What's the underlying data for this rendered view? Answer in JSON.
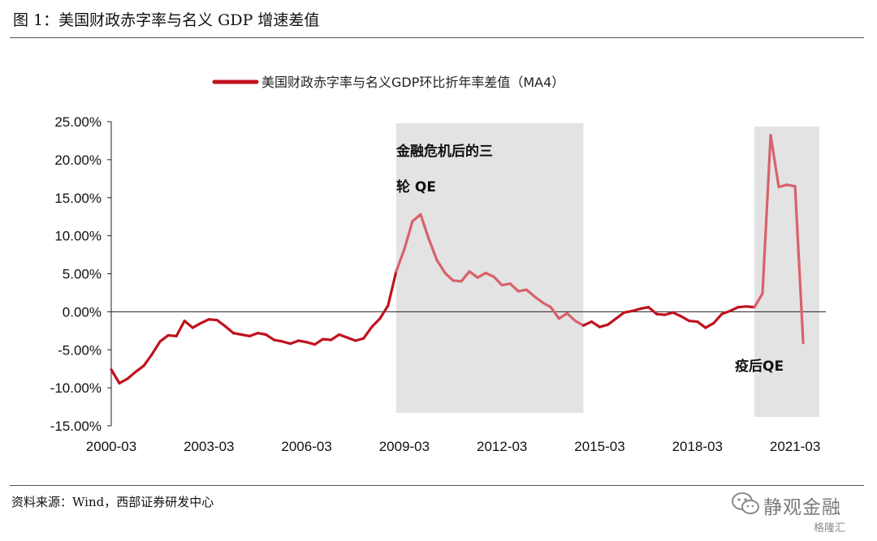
{
  "header": {
    "title": "图 1：美国财政赤字率与名义 GDP 增速差值"
  },
  "footer": {
    "source": "资料来源：Wind，西部证券研发中心",
    "watermark_text": "静观金融",
    "watermark_sub": "格隆汇",
    "watermark_icon": "wechat-icon"
  },
  "chart_data": {
    "type": "line",
    "title": "",
    "xlabel": "",
    "ylabel": "",
    "ylim": [
      -15,
      25
    ],
    "y_tick_values": [
      25,
      20,
      15,
      10,
      5,
      0,
      -5,
      -10,
      -15
    ],
    "y_tick_labels": [
      "25.00%",
      "20.00%",
      "15.00%",
      "10.00%",
      "5.00%",
      "0.00%",
      "-5.00%",
      "-10.00%",
      "-15.00%"
    ],
    "x_tick_labels": [
      "2000-03",
      "2003-03",
      "2006-03",
      "2009-03",
      "2012-03",
      "2015-03",
      "2018-03",
      "2021-03"
    ],
    "legend": {
      "placement": "top-center",
      "entries": [
        "美国财政赤字率与名义GDP环比折年率差值（MA4）"
      ]
    },
    "grid": false,
    "series": [
      {
        "name": "美国财政赤字率与名义GDP环比折年率差值（MA4）",
        "color": "#c0121f",
        "x_start": "2000-03",
        "frequency": "quarterly",
        "values": [
          -7.6,
          -9.4,
          -8.8,
          -7.9,
          -7.1,
          -5.6,
          -3.9,
          -3.1,
          -3.2,
          -1.2,
          -2.1,
          -1.5,
          -1.0,
          -1.1,
          -1.9,
          -2.8,
          -3.0,
          -3.2,
          -2.8,
          -3.0,
          -3.7,
          -3.9,
          -4.2,
          -3.8,
          -4.0,
          -4.3,
          -3.6,
          -3.7,
          -3.0,
          -3.4,
          -3.8,
          -3.5,
          -2.0,
          -0.9,
          0.8,
          5.3,
          8.2,
          11.9,
          12.8,
          9.6,
          6.8,
          5.1,
          4.1,
          4.0,
          5.3,
          4.5,
          5.1,
          4.6,
          3.5,
          3.7,
          2.7,
          2.9,
          2.0,
          1.2,
          0.6,
          -0.9,
          -0.2,
          -1.2,
          -1.8,
          -1.3,
          -2.0,
          -1.7,
          -0.9,
          -0.1,
          0.1,
          0.4,
          0.6,
          -0.3,
          -0.4,
          -0.1,
          -0.6,
          -1.2,
          -1.3,
          -2.1,
          -1.5,
          -0.3,
          0.1,
          0.6,
          0.7,
          0.6,
          2.4,
          23.2,
          16.4,
          16.7,
          16.5,
          -4.1
        ]
      }
    ],
    "annotations": [
      {
        "text_line1": "金融危机后的三",
        "text_line2": "轮 QE",
        "start": "2008-12",
        "end": "2014-09"
      },
      {
        "text_line1": "疫后QE",
        "start": "2019-12",
        "end": "2021-12"
      }
    ]
  }
}
